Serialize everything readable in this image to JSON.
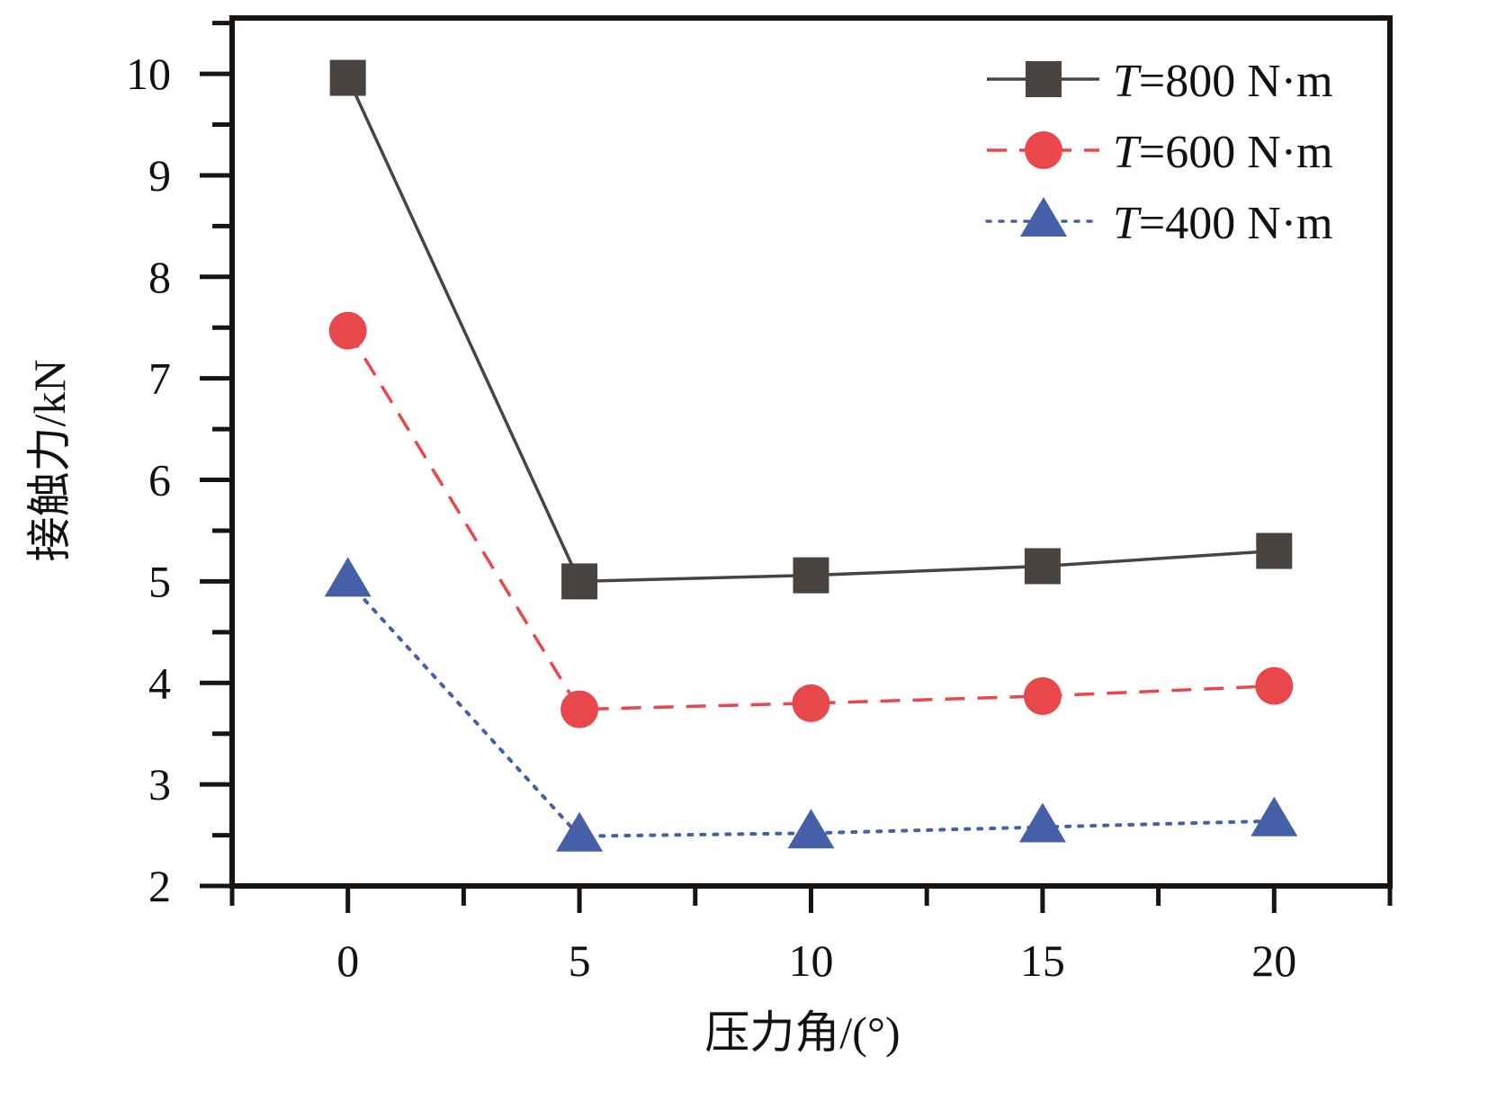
{
  "chart_data": {
    "type": "line",
    "title": "",
    "xlabel": "压力角/(°)",
    "ylabel": "接触力/kN",
    "xlim": [
      -2.5,
      22.5
    ],
    "ylim": [
      2,
      10.55
    ],
    "xticks": [
      0,
      5,
      10,
      15,
      20
    ],
    "xtick_labels": [
      "0",
      "5",
      "10",
      "15",
      "20"
    ],
    "yticks": [
      2,
      3,
      4,
      5,
      6,
      7,
      8,
      9,
      10
    ],
    "ytick_labels": [
      "2",
      "3",
      "4",
      "5",
      "6",
      "7",
      "8",
      "9",
      "10"
    ],
    "grid": false,
    "legend_position": "top-right",
    "x": [
      0,
      5,
      10,
      15,
      20
    ],
    "series": [
      {
        "name": "T=800 N·m",
        "name_italic": "T",
        "name_rest": "=800 N·m",
        "color": "#4a4440",
        "marker": "square",
        "dash": "solid",
        "values": [
          9.96,
          5.0,
          5.06,
          5.15,
          5.3
        ]
      },
      {
        "name": "T=600 N·m",
        "name_italic": "T",
        "name_rest": "=600 N·m",
        "color": "#e8474c",
        "marker": "circle",
        "dash": "dashed",
        "values": [
          7.47,
          3.74,
          3.8,
          3.87,
          3.97
        ]
      },
      {
        "name": "T=400 N·m",
        "name_italic": "T",
        "name_rest": "=400 N·m",
        "color": "#4560a8",
        "marker": "triangle",
        "dash": "dotted",
        "values": [
          5.0,
          2.49,
          2.52,
          2.58,
          2.64
        ]
      }
    ]
  }
}
